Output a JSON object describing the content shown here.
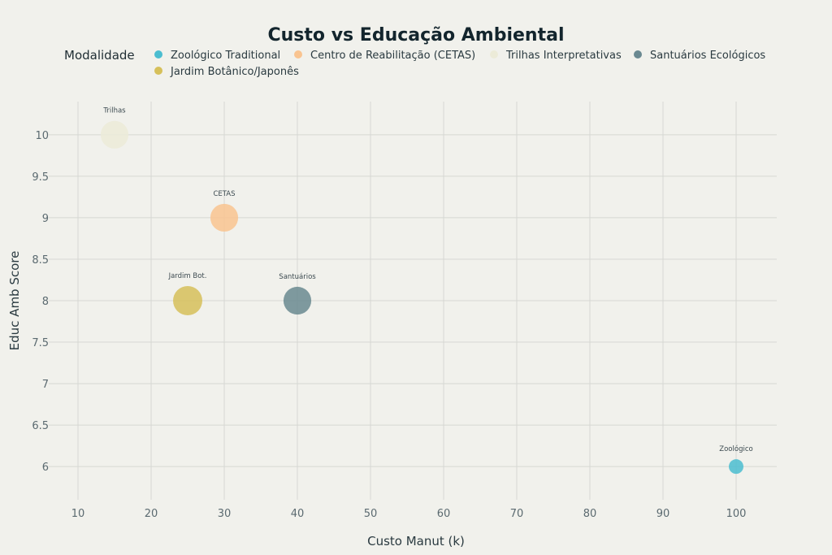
{
  "chart_data": {
    "type": "scatter",
    "title": "Custo vs Educação Ambiental",
    "xlabel": "Custo Manut (k)",
    "ylabel": "Educ Amb Score",
    "xlim": [
      6,
      106
    ],
    "ylim": [
      5.6,
      10.4
    ],
    "xticks": [
      10,
      20,
      30,
      40,
      50,
      60,
      70,
      80,
      90,
      100
    ],
    "yticks": [
      6,
      6.5,
      7,
      7.5,
      8,
      8.5,
      9,
      9.5,
      10
    ],
    "grid": true,
    "legend": {
      "title": "Modalidade",
      "placement": "top",
      "entries": [
        {
          "name": "Zoológico Traditional",
          "color": "#4bbdd0"
        },
        {
          "name": "Centro de Reabilitação (CETAS)",
          "color": "#f9c490"
        },
        {
          "name": "Trilhas Interpretativas",
          "color": "#ecebd8"
        },
        {
          "name": "Santuários Ecológicos",
          "color": "#6a8991"
        },
        {
          "name": "Jardim Botânico/Japonês",
          "color": "#d6c05a"
        }
      ]
    },
    "series": [
      {
        "name": "Zoológico Traditional",
        "color": "#4bbdd0",
        "x": 100,
        "y": 6,
        "size": 1,
        "label": "Zoológico"
      },
      {
        "name": "Centro de Reabilitação (CETAS)",
        "color": "#f9c490",
        "x": 30,
        "y": 9,
        "size": 1.9,
        "label": "CETAS"
      },
      {
        "name": "Trilhas Interpretativas",
        "color": "#ecebd8",
        "x": 15,
        "y": 10,
        "size": 1.9,
        "label": "Trilhas"
      },
      {
        "name": "Santuários Ecológicos",
        "color": "#6a8991",
        "x": 40,
        "y": 8,
        "size": 1.9,
        "label": "Santuários"
      },
      {
        "name": "Jardim Botânico/Japonês",
        "color": "#d6c05a",
        "x": 25,
        "y": 8,
        "size": 2,
        "label": "Jardim Bot."
      }
    ]
  }
}
